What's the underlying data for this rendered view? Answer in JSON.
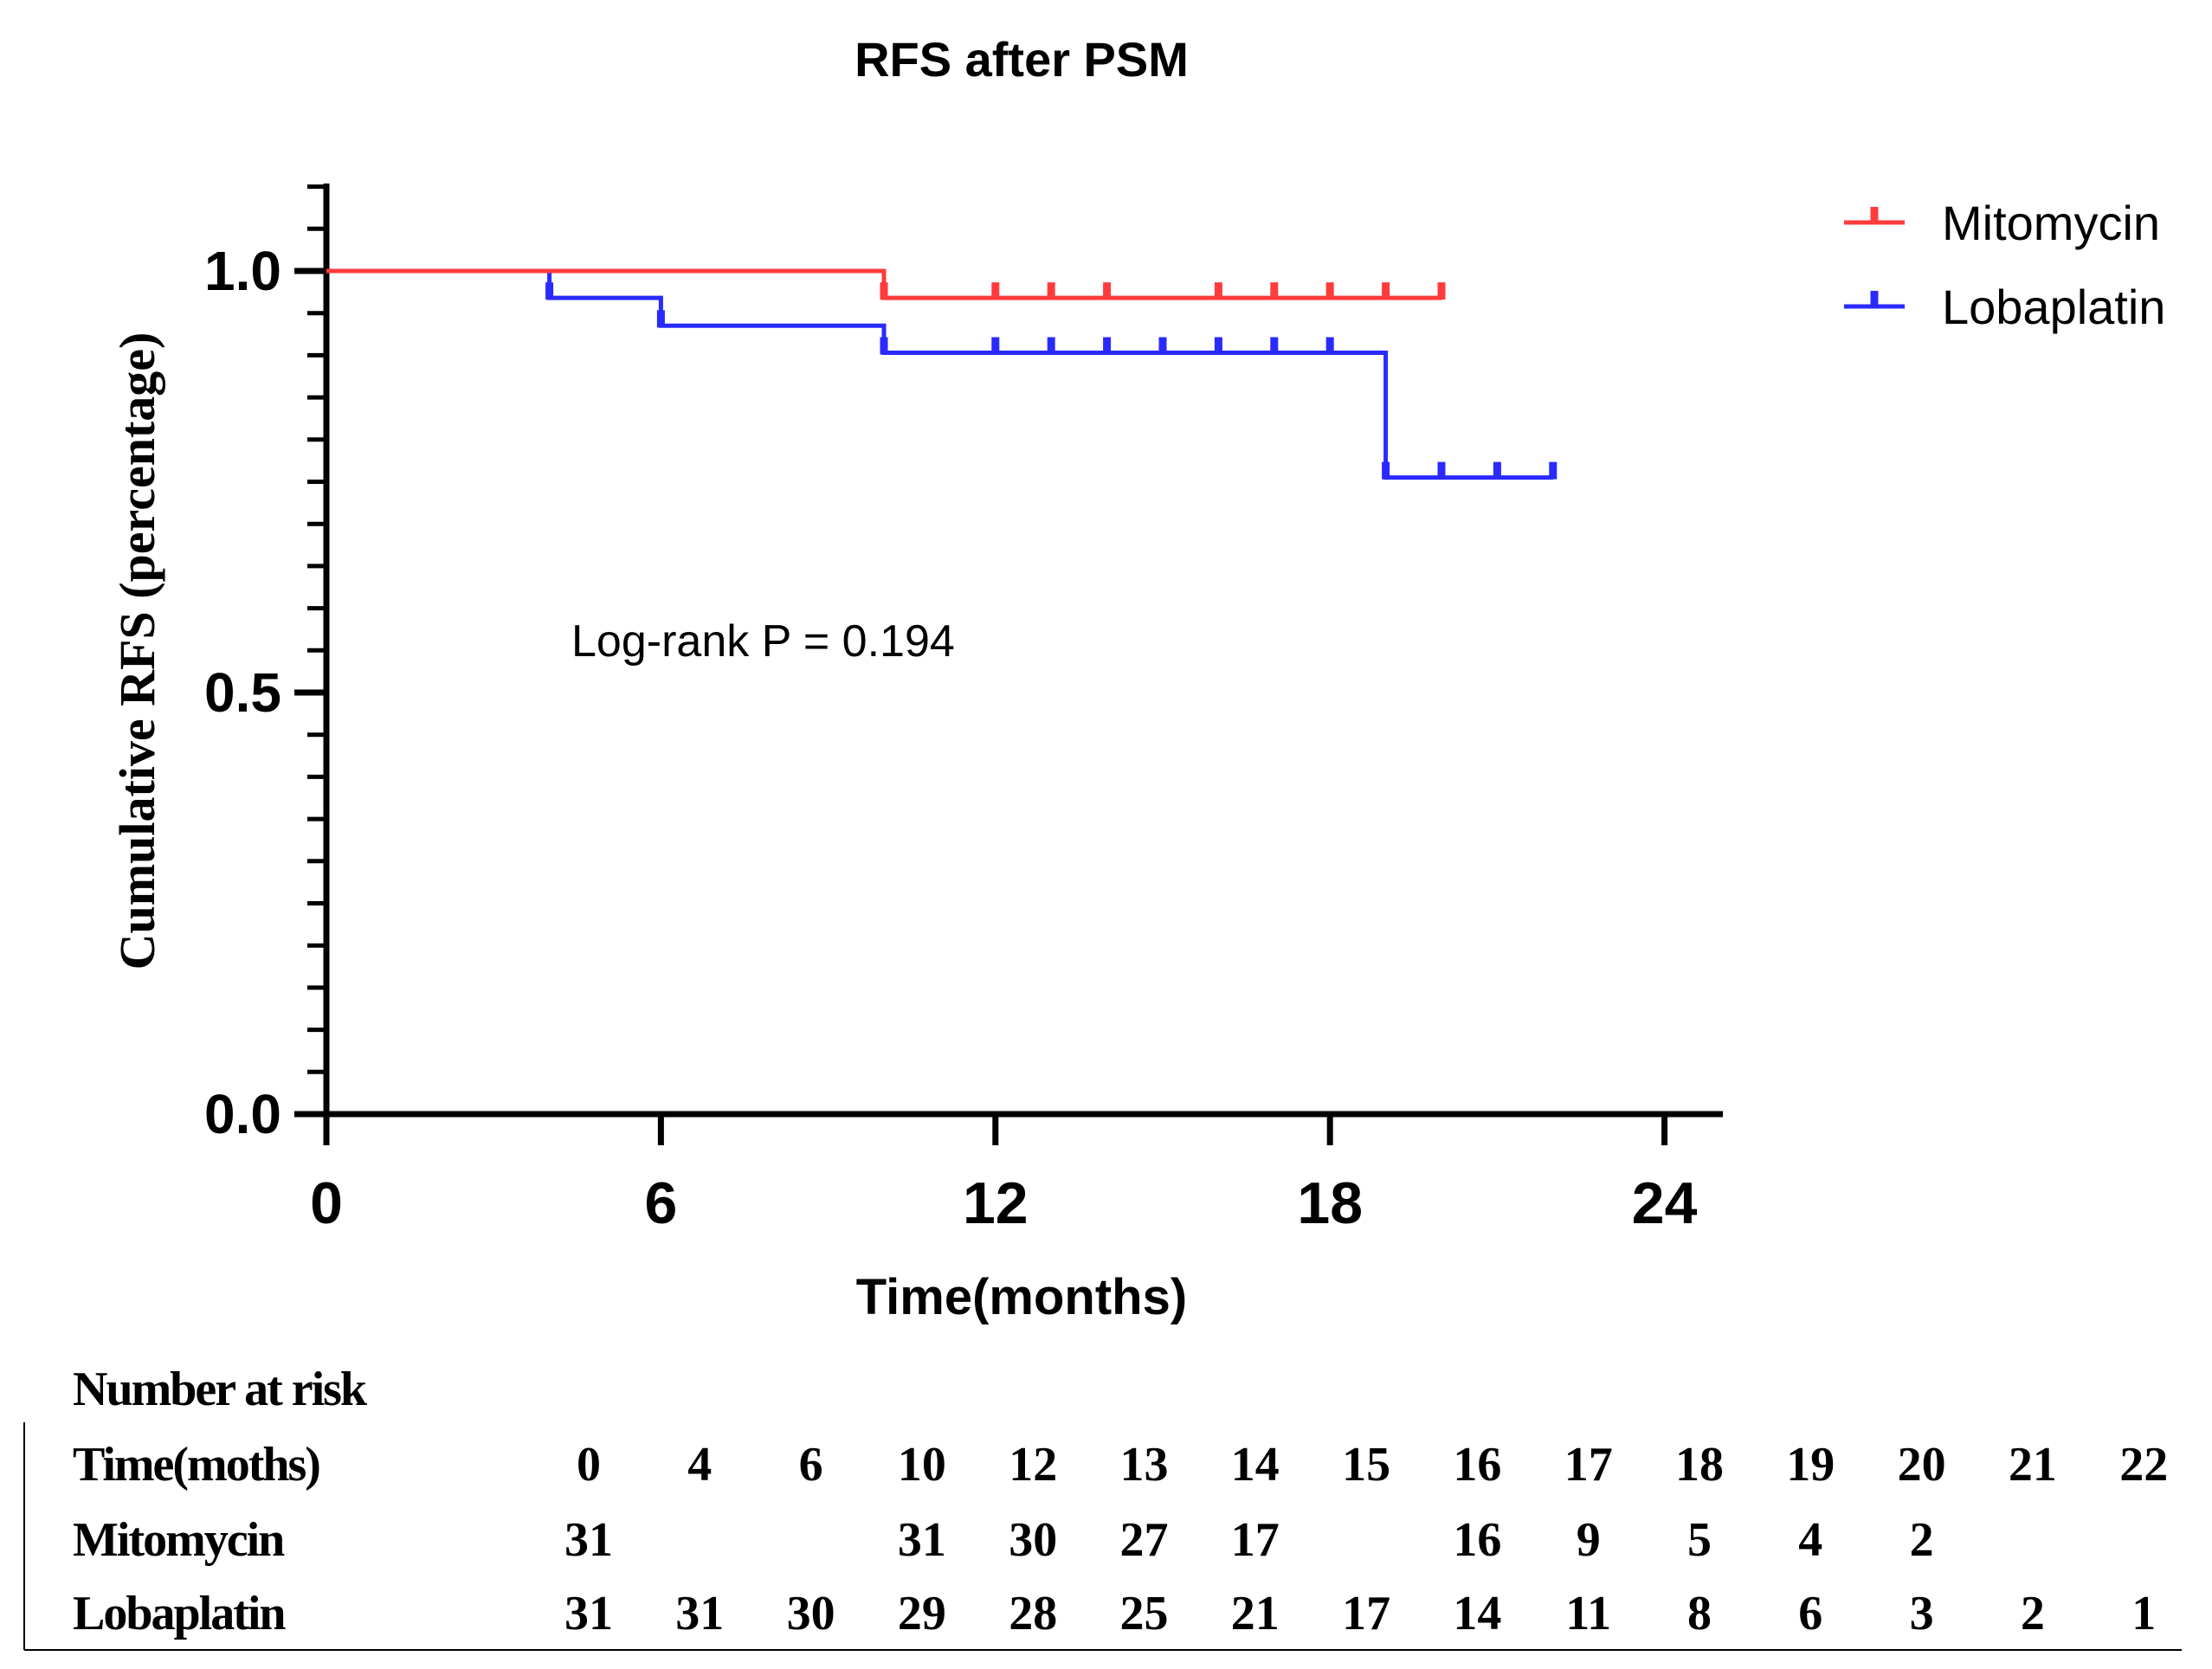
{
  "chart_data": {
    "type": "line",
    "subtype": "kaplan-meier",
    "title": "RFS after PSM",
    "xlabel": "Time(months)",
    "ylabel": "Cumulative RFS (percentage)",
    "xlim": [
      0,
      25
    ],
    "ylim": [
      0,
      1.1
    ],
    "xticks": [
      0,
      6,
      12,
      18,
      24
    ],
    "xtick_labels": [
      "0",
      "6",
      "12",
      "18",
      "24"
    ],
    "yticks": [
      0.0,
      0.5,
      1.0
    ],
    "ytick_labels": [
      "0.0",
      "0.5",
      "1.0"
    ],
    "y_minor_step": 0.05,
    "annotation": "Log-rank P = 0.194",
    "legend_position": "top-right",
    "series": [
      {
        "name": "Mitomycin",
        "color": "#ff3b3b",
        "steps": [
          [
            0,
            1.0
          ],
          [
            10,
            0.968
          ],
          [
            20,
            0.968
          ]
        ],
        "censor_times": [
          10,
          12,
          13,
          14,
          16,
          17,
          18,
          19,
          20
        ]
      },
      {
        "name": "Lobaplatin",
        "color": "#2a2aff",
        "steps": [
          [
            0,
            1.0
          ],
          [
            4,
            0.968
          ],
          [
            6,
            0.935
          ],
          [
            10,
            0.903
          ],
          [
            19,
            0.755
          ],
          [
            22,
            0.755
          ]
        ],
        "censor_times": [
          4,
          6,
          10,
          12,
          13,
          14,
          15,
          16,
          17,
          18,
          19,
          20,
          21,
          22
        ]
      }
    ]
  },
  "risk_table": {
    "heading": "Number at risk",
    "time_label": "Time(moths)",
    "times": [
      "0",
      "4",
      "6",
      "10",
      "12",
      "13",
      "14",
      "15",
      "16",
      "17",
      "18",
      "19",
      "20",
      "21",
      "22"
    ],
    "rows": [
      {
        "label": "Mitomycin",
        "values": [
          "31",
          "",
          "",
          "31",
          "30",
          "27",
          "17",
          "",
          "16",
          "9",
          "5",
          "4",
          "2",
          "",
          ""
        ]
      },
      {
        "label": "Lobaplatin",
        "values": [
          "31",
          "31",
          "30",
          "29",
          "28",
          "25",
          "21",
          "17",
          "14",
          "11",
          "8",
          "6",
          "3",
          "2",
          "1"
        ]
      }
    ]
  }
}
